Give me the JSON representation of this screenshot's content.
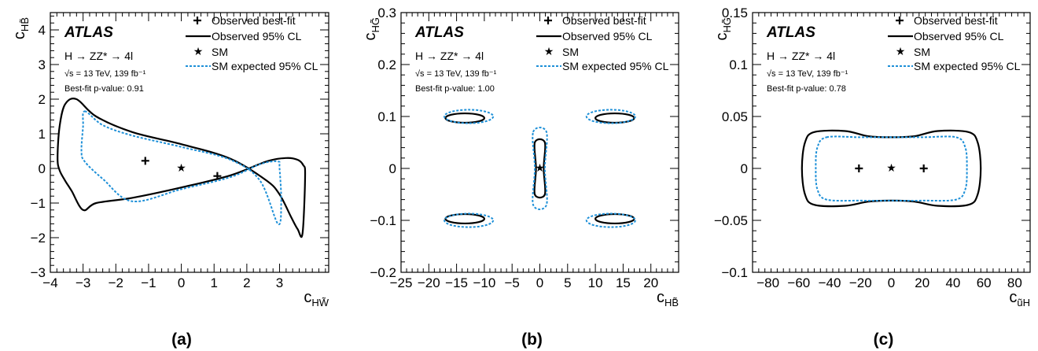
{
  "chart_data": [
    {
      "type": "line",
      "panel_label": "(a)",
      "xlabel": "c_HW̃",
      "ylabel": "c_HB̃",
      "xlim": [
        -4,
        4.5
      ],
      "ylim": [
        -3,
        4.5
      ],
      "xticks": [
        -4,
        -3,
        -2,
        -1,
        0,
        1,
        2,
        3
      ],
      "yticks": [
        -3,
        -2,
        -1,
        0,
        1,
        2,
        3,
        4
      ],
      "atlas_label": "ATLAS",
      "process": "H → ZZ* → 4l",
      "energy": "√s = 13 TeV, 139 fb⁻¹",
      "pvalue": "Best-fit p-value: 0.91",
      "legend": [
        "Observed  best-fit",
        "Observed  95% CL",
        "SM",
        "SM expected 95% CL"
      ],
      "best_fit": [
        [
          -1.1,
          0.22
        ],
        [
          1.1,
          -0.22
        ]
      ],
      "sm_point": [
        0,
        0
      ],
      "series": [
        {
          "name": "Observed  95% CL",
          "style": "solid",
          "color": "#000000",
          "x": [
            -3.55,
            -3.2,
            -2.6,
            -1.5,
            0,
            1.5,
            2.6,
            3.0,
            3.35,
            3.55,
            3.7,
            3.78,
            3.72,
            3.55,
            3.2,
            2.6,
            1.5,
            0,
            -1.5,
            -2.6,
            -3.0,
            -3.35,
            -3.55,
            -3.72,
            -3.78,
            -3.72,
            -3.55
          ],
          "y": [
            1.85,
            2.0,
            1.5,
            1.05,
            0.7,
            0.28,
            -0.35,
            -0.75,
            -1.4,
            -1.75,
            -1.88,
            -0.2,
            0.1,
            0.25,
            0.3,
            0.2,
            -0.2,
            -0.55,
            -0.85,
            -1.0,
            -1.2,
            -0.65,
            -0.35,
            -0.05,
            0.3,
            1.2,
            1.85
          ]
        },
        {
          "name": "SM expected 95% CL",
          "style": "dotted",
          "color": "#1E90D8",
          "x": [
            -2.95,
            -2.4,
            -1.5,
            0,
            1.5,
            2.4,
            2.95,
            3.05,
            3.0,
            2.95,
            2.4,
            1.5,
            0,
            -1.5,
            -2.4,
            -2.95,
            -3.05,
            -3.0,
            -2.95
          ],
          "y": [
            1.65,
            1.25,
            0.95,
            0.62,
            0.25,
            -0.35,
            -1.6,
            -1.0,
            0.0,
            0.2,
            0.12,
            -0.25,
            -0.6,
            -0.95,
            -0.3,
            0.2,
            0.5,
            1.2,
            1.65
          ]
        }
      ]
    },
    {
      "type": "line",
      "panel_label": "(b)",
      "xlabel": "c_HB̃",
      "ylabel": "c_HG̃",
      "xlim": [
        -25,
        25
      ],
      "ylim": [
        -0.2,
        0.3
      ],
      "xticks": [
        -25,
        -20,
        -15,
        -10,
        -5,
        0,
        5,
        10,
        15,
        20
      ],
      "yticks": [
        -0.2,
        -0.1,
        0,
        0.1,
        0.2,
        0.3
      ],
      "atlas_label": "ATLAS",
      "process": "H → ZZ* → 4l",
      "energy": "√s = 13 TeV, 139 fb⁻¹",
      "pvalue": "Best-fit p-value: 1.00",
      "legend": [
        "Observed  best-fit",
        "Observed  95% CL",
        "SM",
        "SM expected 95% CL"
      ],
      "sm_point": [
        0,
        0
      ],
      "ellipses": [
        {
          "style": "solid",
          "cx": -13.5,
          "cy": 0.097,
          "rx": 3.5,
          "ry": 0.009
        },
        {
          "style": "solid",
          "cx": 13.5,
          "cy": 0.097,
          "rx": 3.5,
          "ry": 0.009
        },
        {
          "style": "solid",
          "cx": -13.5,
          "cy": -0.097,
          "rx": 3.5,
          "ry": 0.009
        },
        {
          "style": "solid",
          "cx": 13.5,
          "cy": -0.097,
          "rx": 3.5,
          "ry": 0.009
        },
        {
          "style": "dotted",
          "cx": -12.8,
          "cy": 0.1,
          "rx": 4.4,
          "ry": 0.013
        },
        {
          "style": "dotted",
          "cx": 12.8,
          "cy": 0.1,
          "rx": 4.4,
          "ry": 0.013
        },
        {
          "style": "dotted",
          "cx": -12.8,
          "cy": -0.1,
          "rx": 4.4,
          "ry": 0.013
        },
        {
          "style": "dotted",
          "cx": 12.8,
          "cy": -0.1,
          "rx": 4.4,
          "ry": 0.013
        }
      ],
      "series": [
        {
          "name": "Observed  95% CL",
          "style": "solid",
          "color": "#000000",
          "x": [
            -0.9,
            0.9,
            0.7,
            0.9,
            -0.9,
            -0.7,
            -0.9
          ],
          "y": [
            0.05,
            0.05,
            0.0,
            -0.05,
            -0.05,
            0.0,
            0.05
          ]
        },
        {
          "name": "SM expected 95% CL",
          "style": "dotted",
          "color": "#1E90D8",
          "x": [
            -1.2,
            1.2,
            0.9,
            1.2,
            -1.2,
            -0.9,
            -1.2
          ],
          "y": [
            0.07,
            0.07,
            0.0,
            -0.07,
            -0.07,
            0.0,
            0.07
          ]
        }
      ]
    },
    {
      "type": "line",
      "panel_label": "(c)",
      "xlabel": "c_ũH",
      "ylabel": "c_HG̃",
      "xlim": [
        -90,
        90
      ],
      "ylim": [
        -0.1,
        0.15
      ],
      "xticks": [
        -80,
        -60,
        -40,
        -20,
        0,
        20,
        40,
        60,
        80
      ],
      "yticks": [
        -0.1,
        -0.05,
        0,
        0.05,
        0.1,
        0.15
      ],
      "atlas_label": "ATLAS",
      "process": "H → ZZ* → 4l",
      "energy": "√s = 13 TeV, 139 fb⁻¹",
      "pvalue": "Best-fit p-value: 0.78",
      "legend": [
        "Observed  best-fit",
        "Observed  95% CL",
        "SM",
        "SM expected 95% CL"
      ],
      "best_fit": [
        [
          -21,
          0
        ],
        [
          21,
          0
        ]
      ],
      "sm_point": [
        0,
        0
      ],
      "series": [
        {
          "name": "Observed  95% CL",
          "style": "solid",
          "color": "#000000",
          "x": [
            -50,
            -30,
            -15,
            0,
            15,
            30,
            50,
            56,
            58,
            56,
            50,
            30,
            15,
            0,
            -15,
            -30,
            -50,
            -56,
            -58,
            -56,
            -50
          ],
          "y": [
            0.035,
            0.036,
            0.031,
            0.03,
            0.031,
            0.036,
            0.035,
            0.025,
            0.0,
            -0.025,
            -0.035,
            -0.036,
            -0.032,
            -0.031,
            -0.032,
            -0.036,
            -0.035,
            -0.025,
            0.0,
            0.025,
            0.035
          ]
        },
        {
          "name": "SM expected 95% CL",
          "style": "dotted",
          "color": "#1E90D8",
          "x": [
            -42,
            -20,
            0,
            20,
            42,
            48,
            49,
            48,
            42,
            20,
            0,
            -20,
            -42,
            -48,
            -49,
            -48,
            -42
          ],
          "y": [
            0.03,
            0.03,
            0.03,
            0.03,
            0.03,
            0.02,
            0.0,
            -0.02,
            -0.03,
            -0.031,
            -0.031,
            -0.031,
            -0.03,
            -0.02,
            0.0,
            0.02,
            0.03
          ]
        }
      ]
    }
  ]
}
